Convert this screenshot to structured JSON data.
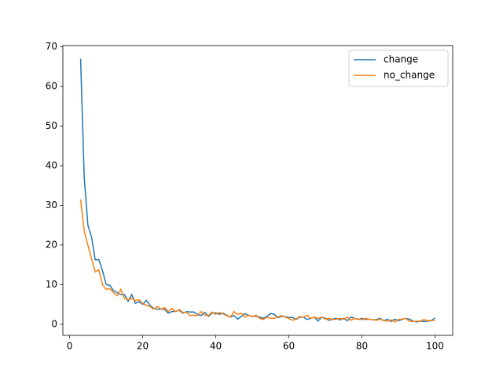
{
  "chart_data": {
    "type": "line",
    "x": [
      3,
      4,
      5,
      6,
      7,
      8,
      9,
      10,
      11,
      12,
      13,
      14,
      15,
      16,
      17,
      18,
      19,
      20,
      21,
      22,
      23,
      24,
      25,
      26,
      27,
      28,
      29,
      30,
      31,
      32,
      33,
      34,
      35,
      36,
      37,
      38,
      39,
      40,
      41,
      42,
      43,
      44,
      45,
      46,
      47,
      48,
      49,
      50,
      51,
      52,
      53,
      54,
      55,
      56,
      57,
      58,
      59,
      60,
      61,
      62,
      63,
      64,
      65,
      66,
      67,
      68,
      69,
      70,
      71,
      72,
      73,
      74,
      75,
      76,
      77,
      78,
      79,
      80,
      81,
      82,
      83,
      84,
      85,
      86,
      87,
      88,
      89,
      90,
      91,
      92,
      93,
      94,
      95,
      96,
      97,
      98,
      99,
      100
    ],
    "series": [
      {
        "name": "change",
        "color": "#1f77b4",
        "values": [
          67,
          37,
          25,
          22,
          16.3,
          16.3,
          13.5,
          10,
          9.8,
          8.5,
          8,
          7.5,
          7.5,
          5.8,
          7.5,
          5.3,
          5.7,
          5,
          6,
          4.8,
          4,
          3.8,
          3.8,
          3.8,
          2.8,
          3.2,
          3.3,
          3.5,
          2.8,
          3.2,
          3.1,
          3.1,
          2.5,
          2.2,
          3,
          2,
          2.8,
          2.9,
          2.5,
          2.8,
          2.3,
          1.8,
          2.2,
          1.3,
          2,
          2.7,
          2.2,
          2,
          2,
          1.8,
          1.5,
          2,
          2.7,
          2.5,
          1.7,
          2,
          1.9,
          1.7,
          1.7,
          1.2,
          1.8,
          1.8,
          1.2,
          1.5,
          1.8,
          0.8,
          1.8,
          1.5,
          1,
          1.3,
          1.5,
          1.1,
          1.5,
          0.9,
          1.8,
          1.5,
          1.2,
          1.5,
          1.2,
          1.3,
          1.1,
          1.2,
          1.5,
          0.9,
          1.3,
          0.7,
          1.3,
          0.9,
          1.2,
          1.5,
          1.3,
          0.8,
          0.6,
          0.8,
          0.7,
          0.8,
          0.9,
          1.6
        ]
      },
      {
        "name": "no_change",
        "color": "#ff7f0e",
        "values": [
          31.5,
          23.5,
          20,
          16.5,
          13.2,
          13.8,
          10,
          8.8,
          9,
          8,
          7.2,
          8.8,
          6.5,
          6.2,
          6.5,
          6,
          6.2,
          5.2,
          4.8,
          4.5,
          3.8,
          4.5,
          3.8,
          4.2,
          3.2,
          4,
          3.2,
          3.7,
          3,
          3,
          2.2,
          2.3,
          2.2,
          3.2,
          2.3,
          2.2,
          3.1,
          2.5,
          3,
          2.6,
          2.2,
          1.8,
          3.2,
          2.5,
          2.8,
          1.8,
          2.3,
          1.9,
          2.3,
          1.5,
          1.2,
          1.8,
          1.5,
          1.5,
          1.9,
          2.2,
          1.8,
          1.5,
          1,
          1.3,
          2,
          1.8,
          2.3,
          1.5,
          1.8,
          1.5,
          1.8,
          1.3,
          1.5,
          1.2,
          1.3,
          1.5,
          1.3,
          1.8,
          1,
          1.5,
          1.3,
          1.2,
          1.5,
          1.2,
          1.2,
          1,
          1.3,
          0.9,
          0.8,
          1.1,
          0.6,
          1.2,
          1.3,
          1.5,
          0.8,
          0.7,
          0.8,
          0.8,
          1.2,
          0.9,
          1,
          0.9
        ]
      }
    ],
    "xlim": [
      -1.85,
      104.85
    ],
    "xticks": [
      0,
      20,
      40,
      60,
      80,
      100
    ],
    "ylim": [
      -2.8,
      70.3
    ],
    "yticks": [
      0,
      10,
      20,
      30,
      40,
      50,
      60,
      70
    ],
    "grid": false,
    "legend": "upper right"
  }
}
